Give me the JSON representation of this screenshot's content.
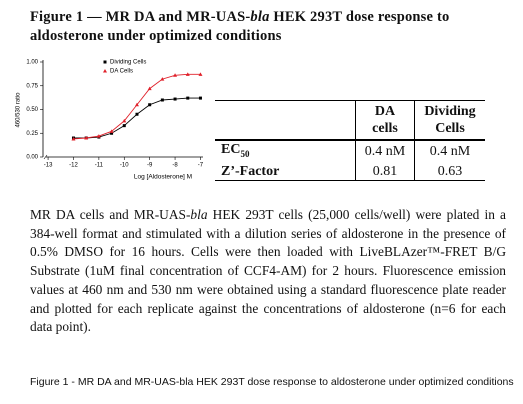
{
  "title": [
    "Figure 1 — MR DA and MR-UAS-",
    "bla",
    " HEK 293T dose response to aldosterone under optimized conditions"
  ],
  "chart_data": {
    "type": "line",
    "x_label": "Log [Aldosterone] M",
    "y_label": "460/530 ratio",
    "x": [
      -12,
      -11.5,
      -11,
      -10.5,
      -10,
      -9.5,
      -9,
      -8.5,
      -8,
      -7.5,
      -7
    ],
    "series": [
      {
        "name": "Dividing Cells",
        "color": "#000000",
        "marker": "square",
        "values": [
          0.2,
          0.2,
          0.21,
          0.25,
          0.33,
          0.45,
          0.55,
          0.6,
          0.61,
          0.62,
          0.62
        ]
      },
      {
        "name": "DA Cells",
        "color": "#e0202a",
        "marker": "triangle",
        "values": [
          0.19,
          0.2,
          0.22,
          0.27,
          0.38,
          0.55,
          0.72,
          0.82,
          0.86,
          0.87,
          0.87
        ]
      }
    ],
    "xlim": [
      -13.2,
      -6.9
    ],
    "xticks": [
      -13,
      -12,
      -11,
      -10,
      -9,
      -8,
      -7
    ],
    "ylim": [
      0,
      1
    ],
    "yticks": [
      {
        "value": 0,
        "label": "0.00"
      },
      {
        "value": 0.25,
        "label": "0.25"
      },
      {
        "value": 0.5,
        "label": "0.50"
      },
      {
        "value": 0.75,
        "label": "0.75"
      },
      {
        "value": 1,
        "label": "1.00"
      }
    ],
    "legend": "top"
  },
  "table": {
    "headers": [
      "DA cells",
      "Dividing Cells"
    ],
    "rows": [
      {
        "label": "EC",
        "sub": "50",
        "cells": [
          "0.4 nM",
          "0.4 nM"
        ]
      },
      {
        "label": "Z’-Factor",
        "cells": [
          "0.81",
          "0.63"
        ]
      }
    ]
  },
  "body": [
    "MR DA cells and MR-UAS-",
    "bla",
    " HEK 293T cells (25,000 cells/well) were plated in a 384-well format and stimulated with a dilution series of aldosterone in the presence of 0.5% DMSO for 16 hours. Cells were then loaded with LiveBLAzer™-FRET B/G Substrate (1uM final concentration of CCF4-AM) for 2 hours. Fluorescence emission values at 460 nm and 530 nm were obtained using a standard fluorescence plate reader and plotted for each replicate against the concentrations of aldosterone (n=6 for each data point)."
  ],
  "caption": "Figure 1 - MR DA and MR-UAS-bla HEK 293T dose response to aldosterone under optimized conditions"
}
